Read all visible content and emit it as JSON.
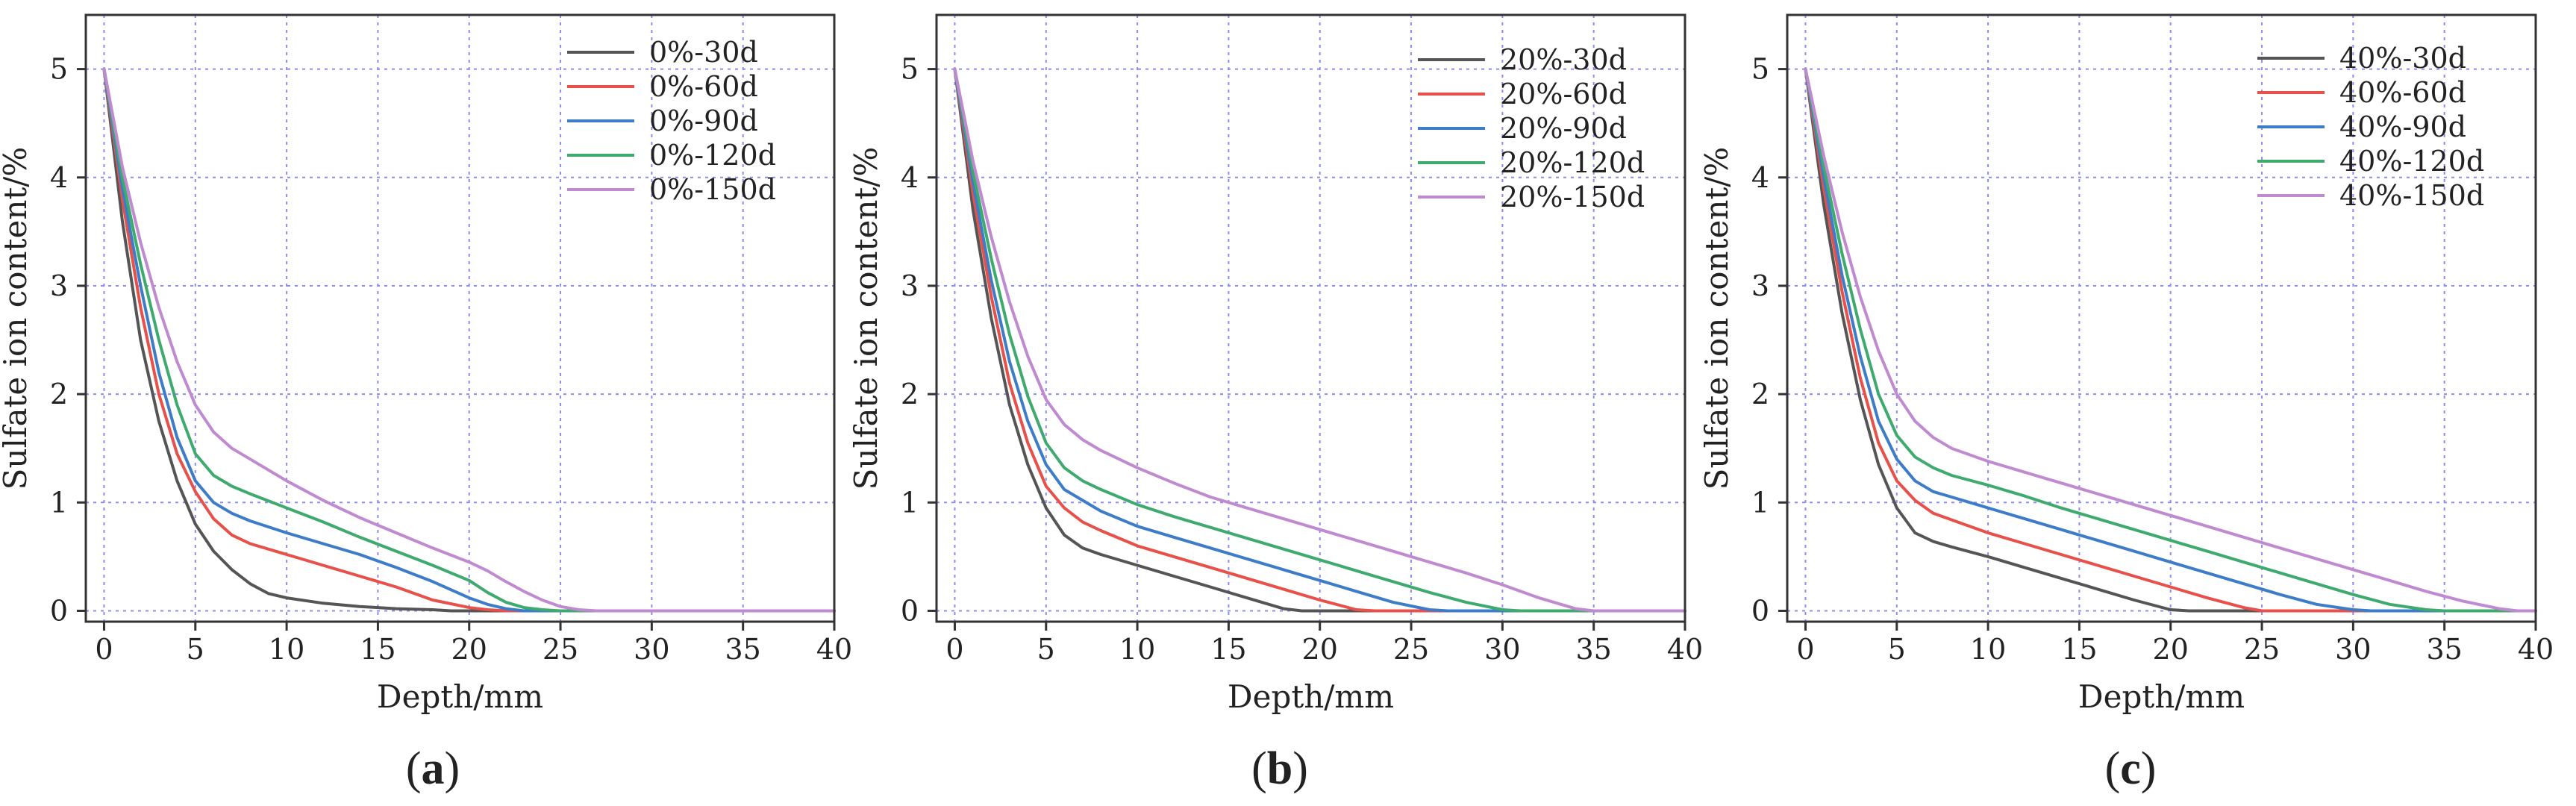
{
  "chart_data": [
    {
      "type": "line",
      "panel_label": "a",
      "xlabel": "Depth/mm",
      "ylabel": "Sulfate ion content/%",
      "xlim": [
        -1,
        40
      ],
      "ylim": [
        -0.1,
        5.5
      ],
      "xticks": [
        0,
        5,
        10,
        15,
        20,
        25,
        30,
        35,
        40
      ],
      "yticks": [
        0,
        1,
        2,
        3,
        4,
        5
      ],
      "grid": true,
      "legend_position": "top-right",
      "series": [
        {
          "name": "0%-30d",
          "color": "#555555",
          "x": [
            0,
            1,
            2,
            3,
            4,
            5,
            6,
            7,
            8,
            9,
            10,
            12,
            14,
            16,
            18,
            19,
            20,
            40
          ],
          "y": [
            5.0,
            3.6,
            2.5,
            1.75,
            1.2,
            0.8,
            0.55,
            0.38,
            0.25,
            0.16,
            0.12,
            0.07,
            0.04,
            0.02,
            0.01,
            0.0,
            0.0,
            0.0
          ]
        },
        {
          "name": "0%-60d",
          "color": "#e8504a",
          "x": [
            0,
            1,
            2,
            3,
            4,
            5,
            6,
            7,
            8,
            10,
            12,
            14,
            16,
            18,
            20,
            21,
            22,
            40
          ],
          "y": [
            5.0,
            3.8,
            2.8,
            2.0,
            1.45,
            1.1,
            0.85,
            0.7,
            0.62,
            0.52,
            0.42,
            0.32,
            0.22,
            0.1,
            0.03,
            0.01,
            0.0,
            0.0
          ]
        },
        {
          "name": "0%-90d",
          "color": "#3d7cc9",
          "x": [
            0,
            1,
            2,
            3,
            4,
            5,
            6,
            7,
            8,
            10,
            12,
            14,
            16,
            18,
            20,
            21,
            22,
            23,
            24,
            40
          ],
          "y": [
            5.0,
            3.9,
            3.0,
            2.2,
            1.6,
            1.2,
            1.0,
            0.9,
            0.83,
            0.72,
            0.62,
            0.52,
            0.4,
            0.27,
            0.12,
            0.06,
            0.02,
            0.0,
            0.0,
            0.0
          ]
        },
        {
          "name": "0%-120d",
          "color": "#3faa6e",
          "x": [
            0,
            1,
            2,
            3,
            4,
            5,
            6,
            7,
            8,
            10,
            12,
            14,
            16,
            18,
            20,
            21,
            22,
            23,
            24,
            25,
            40
          ],
          "y": [
            5.0,
            4.0,
            3.2,
            2.5,
            1.9,
            1.45,
            1.25,
            1.15,
            1.08,
            0.95,
            0.82,
            0.68,
            0.55,
            0.42,
            0.28,
            0.17,
            0.08,
            0.03,
            0.01,
            0.0,
            0.0
          ]
        },
        {
          "name": "0%-150d",
          "color": "#c08ad0",
          "x": [
            0,
            1,
            2,
            3,
            4,
            5,
            6,
            7,
            8,
            10,
            12,
            14,
            16,
            18,
            20,
            21,
            22,
            23,
            24,
            25,
            26,
            27,
            40
          ],
          "y": [
            5.0,
            4.1,
            3.4,
            2.8,
            2.3,
            1.9,
            1.65,
            1.5,
            1.4,
            1.2,
            1.02,
            0.86,
            0.72,
            0.58,
            0.45,
            0.37,
            0.27,
            0.18,
            0.1,
            0.04,
            0.01,
            0.0,
            0.0
          ]
        }
      ]
    },
    {
      "type": "line",
      "panel_label": "b",
      "xlabel": "Depth/mm",
      "ylabel": "Sulfate ion content/%",
      "xlim": [
        -1,
        40
      ],
      "ylim": [
        -0.1,
        5.5
      ],
      "xticks": [
        0,
        5,
        10,
        15,
        20,
        25,
        30,
        35,
        40
      ],
      "yticks": [
        0,
        1,
        2,
        3,
        4,
        5
      ],
      "grid": true,
      "legend_position": "top-right",
      "series": [
        {
          "name": "20%-30d",
          "color": "#555555",
          "x": [
            0,
            1,
            2,
            3,
            4,
            5,
            6,
            7,
            8,
            10,
            12,
            14,
            16,
            18,
            19,
            40
          ],
          "y": [
            5.0,
            3.7,
            2.7,
            1.9,
            1.35,
            0.95,
            0.7,
            0.58,
            0.52,
            0.42,
            0.32,
            0.22,
            0.12,
            0.02,
            0.0,
            0.0
          ]
        },
        {
          "name": "20%-60d",
          "color": "#e8504a",
          "x": [
            0,
            1,
            2,
            3,
            4,
            5,
            6,
            7,
            8,
            10,
            12,
            14,
            16,
            18,
            20,
            22,
            23,
            40
          ],
          "y": [
            5.0,
            3.85,
            2.9,
            2.1,
            1.55,
            1.15,
            0.95,
            0.82,
            0.74,
            0.6,
            0.5,
            0.4,
            0.3,
            0.2,
            0.1,
            0.01,
            0.0,
            0.0
          ]
        },
        {
          "name": "20%-90d",
          "color": "#3d7cc9",
          "x": [
            0,
            1,
            2,
            3,
            4,
            5,
            6,
            7,
            8,
            10,
            12,
            14,
            16,
            18,
            20,
            22,
            24,
            26,
            27,
            40
          ],
          "y": [
            5.0,
            3.95,
            3.05,
            2.3,
            1.75,
            1.35,
            1.12,
            1.02,
            0.92,
            0.78,
            0.68,
            0.58,
            0.48,
            0.38,
            0.28,
            0.18,
            0.08,
            0.01,
            0.0,
            0.0
          ]
        },
        {
          "name": "20%-120d",
          "color": "#3faa6e",
          "x": [
            0,
            1,
            2,
            3,
            4,
            5,
            6,
            7,
            8,
            10,
            12,
            14,
            16,
            18,
            20,
            22,
            24,
            26,
            28,
            30,
            31,
            40
          ],
          "y": [
            5.0,
            4.05,
            3.25,
            2.55,
            1.98,
            1.55,
            1.32,
            1.2,
            1.12,
            0.98,
            0.87,
            0.77,
            0.67,
            0.57,
            0.47,
            0.37,
            0.27,
            0.17,
            0.08,
            0.01,
            0.0,
            0.0
          ]
        },
        {
          "name": "20%-150d",
          "color": "#c08ad0",
          "x": [
            0,
            1,
            2,
            3,
            4,
            5,
            6,
            7,
            8,
            10,
            12,
            14,
            16,
            18,
            20,
            22,
            24,
            26,
            28,
            30,
            32,
            34,
            35,
            40
          ],
          "y": [
            5.0,
            4.15,
            3.45,
            2.85,
            2.35,
            1.95,
            1.72,
            1.58,
            1.48,
            1.32,
            1.18,
            1.05,
            0.95,
            0.85,
            0.75,
            0.65,
            0.55,
            0.45,
            0.35,
            0.24,
            0.12,
            0.02,
            0.0,
            0.0
          ]
        }
      ]
    },
    {
      "type": "line",
      "panel_label": "c",
      "xlabel": "Depth/mm",
      "ylabel": "Sulfate ion content/%",
      "xlim": [
        -1,
        40
      ],
      "ylim": [
        -0.1,
        5.5
      ],
      "xticks": [
        0,
        5,
        10,
        15,
        20,
        25,
        30,
        35,
        40
      ],
      "yticks": [
        0,
        1,
        2,
        3,
        4,
        5
      ],
      "grid": true,
      "legend_position": "top-right",
      "series": [
        {
          "name": "40%-30d",
          "color": "#555555",
          "x": [
            0,
            1,
            2,
            3,
            4,
            5,
            6,
            7,
            8,
            10,
            12,
            14,
            16,
            18,
            20,
            21,
            40
          ],
          "y": [
            5.0,
            3.75,
            2.75,
            1.95,
            1.35,
            0.95,
            0.72,
            0.64,
            0.59,
            0.5,
            0.4,
            0.3,
            0.2,
            0.1,
            0.01,
            0.0,
            0.0
          ]
        },
        {
          "name": "40%-60d",
          "color": "#e8504a",
          "x": [
            0,
            1,
            2,
            3,
            4,
            5,
            6,
            7,
            8,
            10,
            12,
            14,
            16,
            18,
            20,
            22,
            24,
            25,
            40
          ],
          "y": [
            5.0,
            3.9,
            2.95,
            2.15,
            1.55,
            1.2,
            1.02,
            0.9,
            0.84,
            0.72,
            0.62,
            0.52,
            0.42,
            0.32,
            0.22,
            0.12,
            0.03,
            0.0,
            0.0
          ]
        },
        {
          "name": "40%-90d",
          "color": "#3d7cc9",
          "x": [
            0,
            1,
            2,
            3,
            4,
            5,
            6,
            7,
            8,
            10,
            12,
            14,
            16,
            18,
            20,
            22,
            24,
            26,
            28,
            30,
            31,
            40
          ],
          "y": [
            5.0,
            4.0,
            3.1,
            2.35,
            1.75,
            1.4,
            1.2,
            1.1,
            1.05,
            0.95,
            0.85,
            0.75,
            0.65,
            0.55,
            0.45,
            0.35,
            0.25,
            0.15,
            0.06,
            0.01,
            0.0,
            0.0
          ]
        },
        {
          "name": "40%-120d",
          "color": "#3faa6e",
          "x": [
            0,
            1,
            2,
            3,
            4,
            5,
            6,
            7,
            8,
            10,
            12,
            14,
            16,
            18,
            20,
            22,
            24,
            26,
            28,
            30,
            32,
            34,
            35,
            40
          ],
          "y": [
            5.0,
            4.1,
            3.3,
            2.6,
            2.0,
            1.62,
            1.42,
            1.32,
            1.25,
            1.16,
            1.06,
            0.95,
            0.85,
            0.75,
            0.65,
            0.55,
            0.45,
            0.35,
            0.25,
            0.15,
            0.06,
            0.01,
            0.0,
            0.0
          ]
        },
        {
          "name": "40%-150d",
          "color": "#c08ad0",
          "x": [
            0,
            1,
            2,
            3,
            4,
            5,
            6,
            7,
            8,
            10,
            12,
            14,
            16,
            18,
            20,
            22,
            24,
            26,
            28,
            30,
            32,
            34,
            36,
            38,
            39,
            40
          ],
          "y": [
            5.0,
            4.2,
            3.5,
            2.9,
            2.4,
            2.0,
            1.75,
            1.6,
            1.5,
            1.38,
            1.28,
            1.18,
            1.08,
            0.98,
            0.88,
            0.78,
            0.68,
            0.58,
            0.48,
            0.38,
            0.28,
            0.18,
            0.09,
            0.02,
            0.0,
            0.0
          ]
        }
      ]
    }
  ]
}
